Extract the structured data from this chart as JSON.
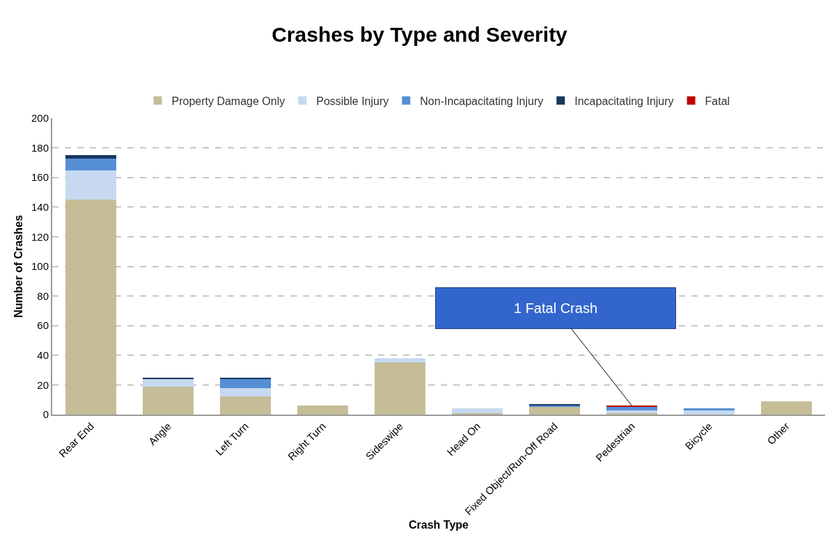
{
  "chart_data": {
    "type": "bar",
    "stacked": true,
    "title": "Crashes by Type and Severity",
    "xlabel": "Crash Type",
    "ylabel": "Number of Crashes",
    "categories": [
      "Rear End",
      "Angle",
      "Left Turn",
      "Right Turn",
      "Sideswipe",
      "Head On",
      "Fixed Object/Run-Off Road",
      "Pedestrian",
      "Bicycle",
      "Other"
    ],
    "series": [
      {
        "name": "Property Damage Only",
        "color": "#c4bd97",
        "values": [
          145,
          19,
          12,
          6,
          35,
          1,
          5,
          1,
          0,
          9
        ]
      },
      {
        "name": "Possible Injury",
        "color": "#c6d9f0",
        "values": [
          20,
          5,
          6,
          0,
          3,
          3,
          0,
          2,
          3,
          0
        ]
      },
      {
        "name": "Non-Incapacitating Injury",
        "color": "#558ed5",
        "values": [
          8,
          0,
          6,
          0,
          0,
          0,
          1,
          2,
          1,
          0
        ]
      },
      {
        "name": "Incapacitating Injury",
        "color": "#17375e",
        "values": [
          2,
          1,
          1,
          0,
          0,
          0,
          1,
          0,
          0,
          0
        ]
      },
      {
        "name": "Fatal",
        "color": "#c00000",
        "values": [
          0,
          0,
          0,
          0,
          0,
          0,
          0,
          1,
          0,
          0
        ]
      }
    ],
    "ylim": [
      0,
      200
    ],
    "yticks": [
      0,
      20,
      40,
      60,
      80,
      100,
      120,
      140,
      160,
      180,
      200
    ],
    "grid": "y",
    "legend": "top",
    "annotations": [
      {
        "text": "1 Fatal Crash",
        "x": "Pedestrian",
        "y": 6
      }
    ]
  }
}
